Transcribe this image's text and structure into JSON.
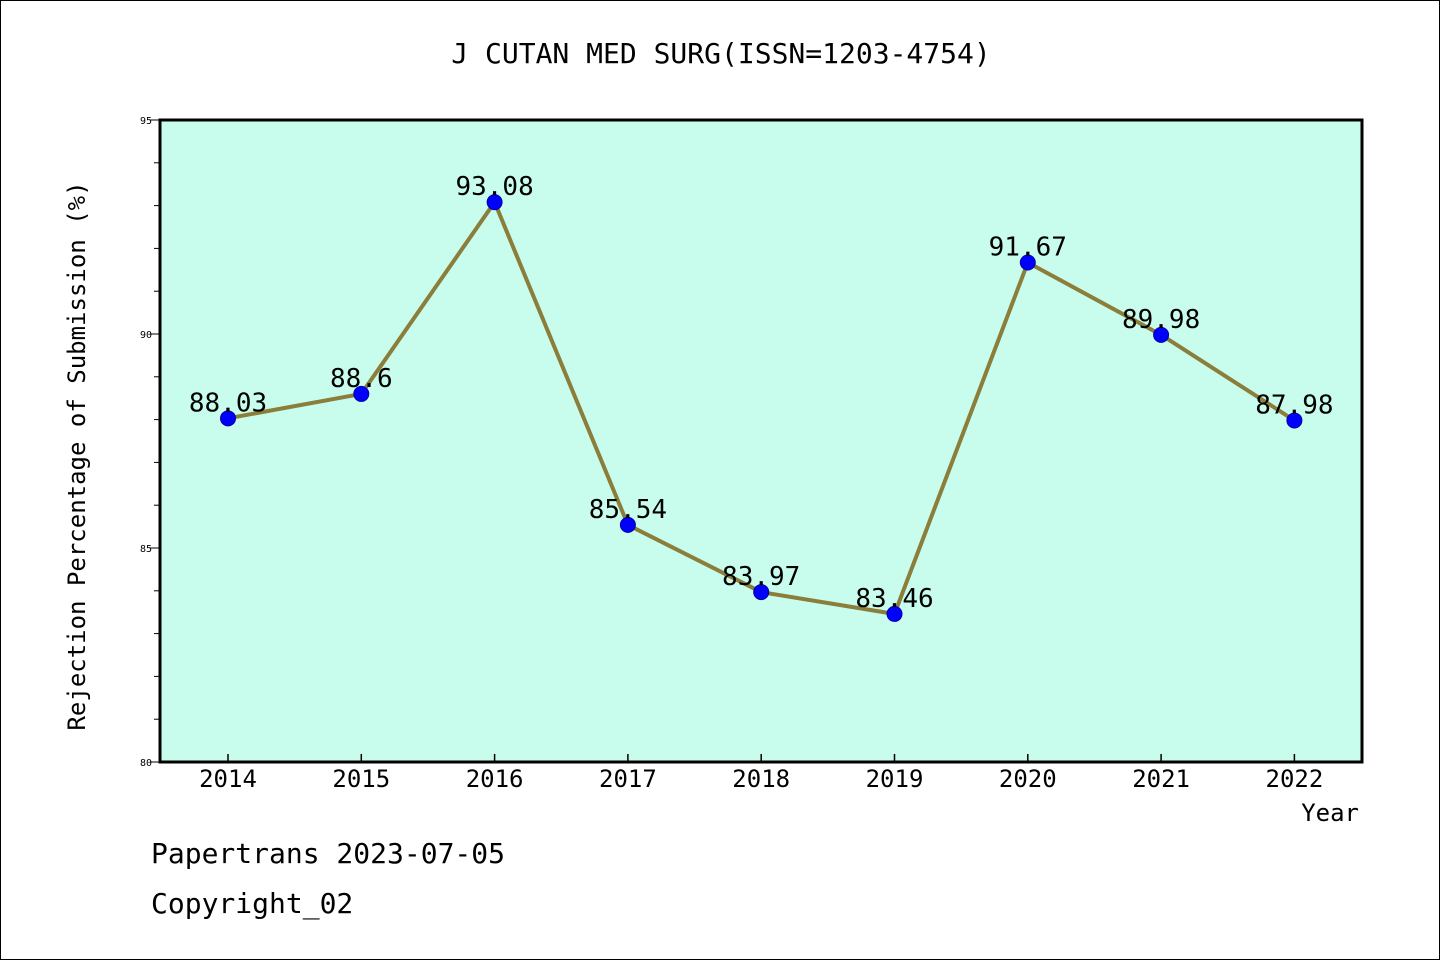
{
  "title": "J CUTAN MED SURG(ISSN=1203-4754)",
  "footer": {
    "line1": "Papertrans 2023-07-05",
    "line2": "Copyright_02"
  },
  "colors": {
    "plot_background": "#c8fcec",
    "line": "#8b7d3a",
    "marker": "#0000ff",
    "axis": "#000000"
  },
  "chart_data": {
    "type": "line",
    "title": "J CUTAN MED SURG(ISSN=1203-4754)",
    "xlabel": "Year",
    "ylabel": "Rejection Percentage of Submission (%)",
    "categories": [
      "2014",
      "2015",
      "2016",
      "2017",
      "2018",
      "2019",
      "2020",
      "2021",
      "2022"
    ],
    "series": [
      {
        "values": [
          88.03,
          88.6,
          93.08,
          85.54,
          83.97,
          83.46,
          91.67,
          89.98,
          87.98
        ],
        "labels": [
          "88.03",
          "88.6",
          "93.08",
          "85.54",
          "83.97",
          "83.46",
          "91.67",
          "89.98",
          "87.98"
        ]
      }
    ],
    "ylim": [
      80,
      95
    ],
    "yticks": [
      "80",
      "85",
      "90",
      "95"
    ],
    "y_minor_step": 1,
    "grid": false,
    "legend": "none"
  }
}
